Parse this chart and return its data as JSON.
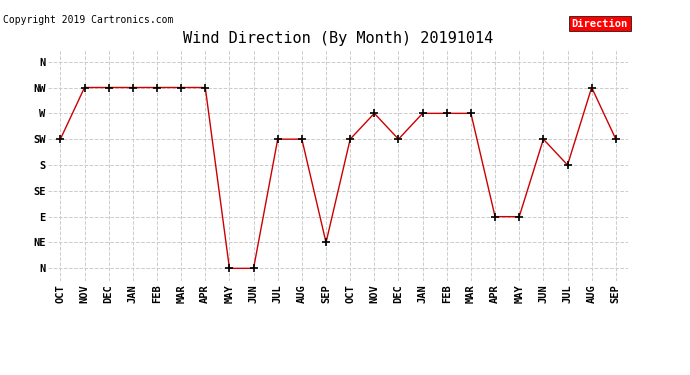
{
  "title": "Wind Direction (By Month) 20191014",
  "copyright_text": "Copyright 2019 Cartronics.com",
  "legend_label": "Direction",
  "legend_bg": "#ff0000",
  "legend_text_color": "#ffffff",
  "x_labels": [
    "OCT",
    "NOV",
    "DEC",
    "JAN",
    "FEB",
    "MAR",
    "APR",
    "MAY",
    "JUN",
    "JUL",
    "AUG",
    "SEP",
    "OCT",
    "NOV",
    "DEC",
    "JAN",
    "FEB",
    "MAR",
    "APR",
    "MAY",
    "JUN",
    "JUL",
    "AUG",
    "SEP"
  ],
  "y_labels": [
    "N",
    "NE",
    "E",
    "SE",
    "S",
    "SW",
    "W",
    "NW",
    "N"
  ],
  "y_values": [
    0,
    1,
    2,
    3,
    4,
    5,
    6,
    7,
    8
  ],
  "data_values": [
    5,
    7,
    7,
    7,
    7,
    7,
    7,
    0,
    0,
    5,
    5,
    1,
    5,
    6,
    5,
    6,
    6,
    6,
    2,
    2,
    5,
    4,
    7,
    5
  ],
  "line_color": "#cc0000",
  "marker": "+",
  "marker_color": "#000000",
  "bg_color": "#ffffff",
  "grid_color": "#cccccc",
  "title_fontsize": 11,
  "tick_fontsize": 7.5,
  "copyright_fontsize": 7
}
